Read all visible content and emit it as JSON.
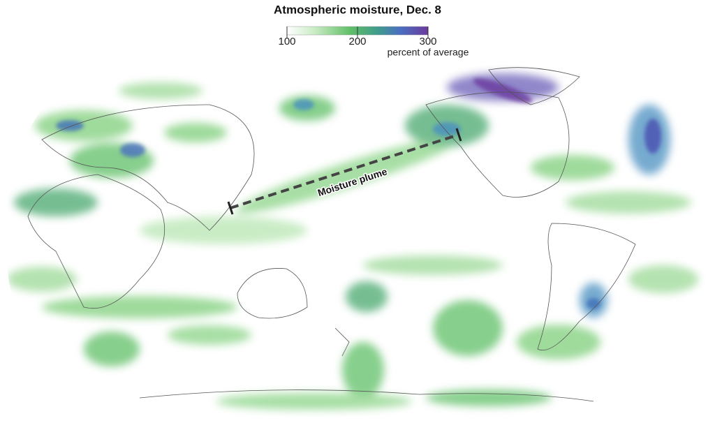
{
  "map": {
    "title": "Atmospheric moisture, Dec. 8",
    "legend": {
      "range": [
        100,
        300
      ],
      "ticks": [
        100,
        200,
        300
      ],
      "label": "percent of average"
    },
    "annotation": "Moisture plume"
  }
}
